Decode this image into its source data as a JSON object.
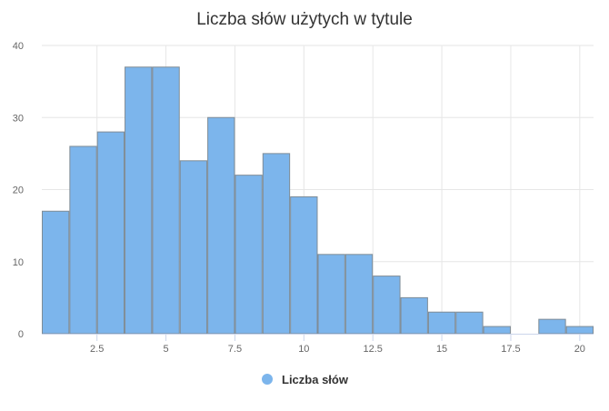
{
  "chart_data": {
    "type": "bar",
    "title": "Liczba słów użytych w tytule",
    "xlabel": "",
    "ylabel": "",
    "x_ticks": [
      "2.5",
      "5",
      "7.5",
      "10",
      "12.5",
      "15",
      "17.5",
      "20"
    ],
    "y_ticks": [
      "0",
      "10",
      "20",
      "30",
      "40"
    ],
    "xlim": [
      0.5,
      20.5
    ],
    "ylim": [
      0,
      40
    ],
    "grid": true,
    "legend_position": "bottom",
    "series": [
      {
        "name": "Liczba słów",
        "color": "#7cb5ec",
        "bins": [
          {
            "x": 1,
            "value": 17
          },
          {
            "x": 2,
            "value": 26
          },
          {
            "x": 3,
            "value": 28
          },
          {
            "x": 4,
            "value": 37
          },
          {
            "x": 5,
            "value": 37
          },
          {
            "x": 6,
            "value": 24
          },
          {
            "x": 7,
            "value": 30
          },
          {
            "x": 8,
            "value": 22
          },
          {
            "x": 9,
            "value": 25
          },
          {
            "x": 10,
            "value": 19
          },
          {
            "x": 11,
            "value": 11
          },
          {
            "x": 12,
            "value": 11
          },
          {
            "x": 13,
            "value": 8
          },
          {
            "x": 14,
            "value": 5
          },
          {
            "x": 15,
            "value": 3
          },
          {
            "x": 16,
            "value": 3
          },
          {
            "x": 17,
            "value": 1
          },
          {
            "x": 18,
            "value": 0
          },
          {
            "x": 19,
            "value": 2
          },
          {
            "x": 20,
            "value": 1
          }
        ]
      }
    ]
  }
}
